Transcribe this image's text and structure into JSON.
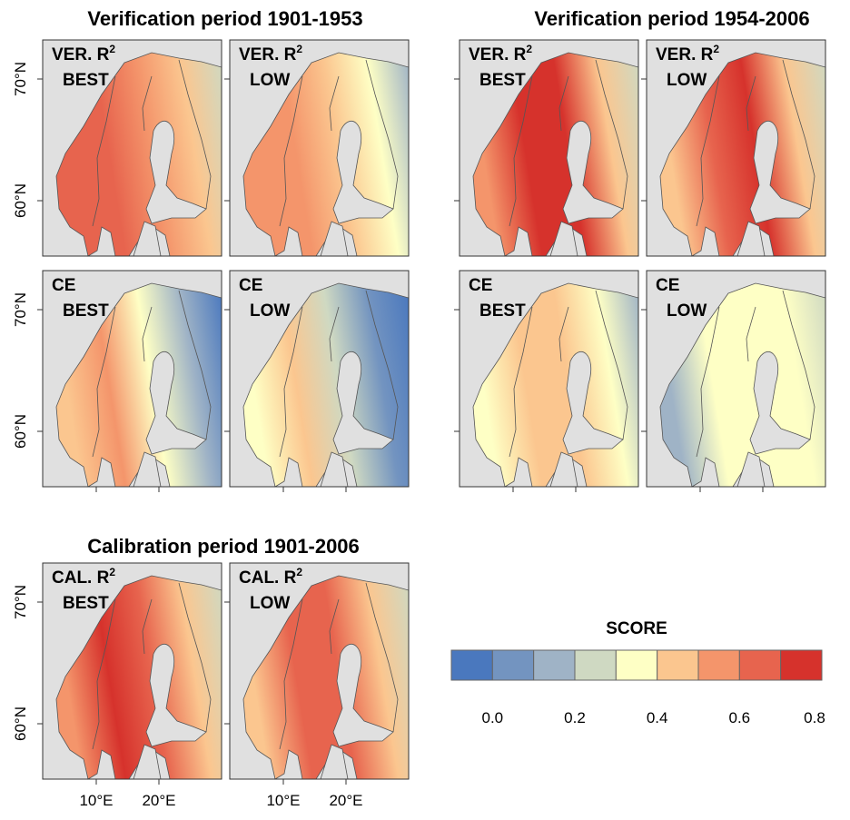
{
  "groups": [
    {
      "title": "Verification period 1901-1953",
      "panels": [
        {
          "metric": "VER. R",
          "superscript": "2",
          "variant": "BEST"
        },
        {
          "metric": "VER. R",
          "superscript": "2",
          "variant": "LOW"
        },
        {
          "metric": "CE",
          "variant": "BEST"
        },
        {
          "metric": "CE",
          "variant": "LOW"
        }
      ]
    },
    {
      "title": "Verification period 1954-2006",
      "panels": [
        {
          "metric": "VER. R",
          "superscript": "2",
          "variant": "BEST"
        },
        {
          "metric": "VER. R",
          "superscript": "2",
          "variant": "LOW"
        },
        {
          "metric": "CE",
          "variant": "BEST"
        },
        {
          "metric": "CE",
          "variant": "LOW"
        }
      ]
    },
    {
      "title": "Calibration period 1901-2006",
      "panels": [
        {
          "metric": "CAL. R",
          "superscript": "2",
          "variant": "BEST"
        },
        {
          "metric": "CAL. R",
          "superscript": "2",
          "variant": "LOW"
        }
      ]
    }
  ],
  "axes": {
    "lat_labels": [
      "70°N",
      "60°N"
    ],
    "lon_labels": [
      "10°E",
      "20°E"
    ]
  },
  "legend": {
    "title": "SCORE",
    "colors": [
      "#4a78be",
      "#7394c0",
      "#9fb3c6",
      "#cfd9c2",
      "#feffc5",
      "#fbc68f",
      "#f4956b",
      "#e7644e",
      "#d6322c"
    ],
    "bins": [
      -0.1,
      0,
      0.1,
      0.2,
      0.3,
      0.4,
      0.5,
      0.6,
      0.7,
      0.8
    ],
    "ticks": [
      {
        "value": 0,
        "label": "0.0"
      },
      0.2,
      0.4,
      0.6,
      0.8
    ]
  }
}
